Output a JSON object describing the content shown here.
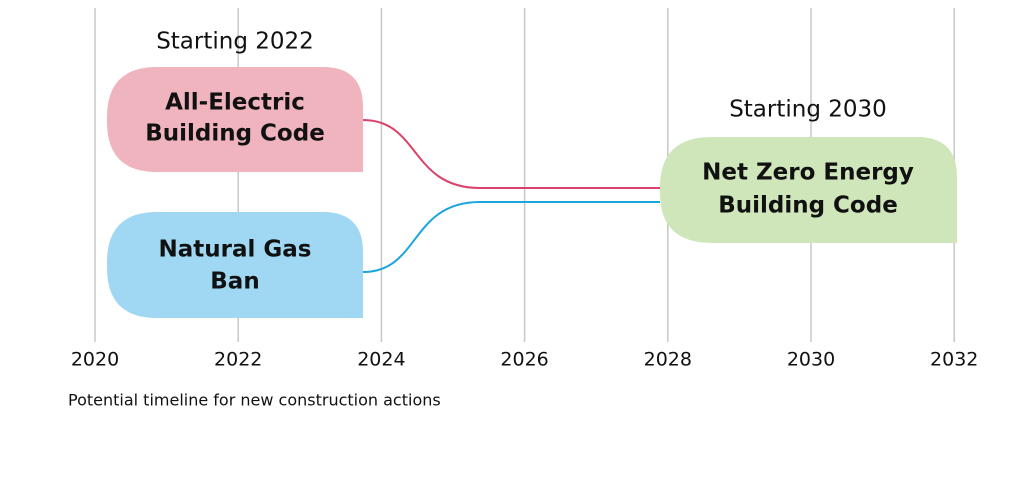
{
  "axis": {
    "labels": [
      "2020",
      "2022",
      "2024",
      "2026",
      "2028",
      "2030",
      "2032"
    ]
  },
  "headings": [
    "Starting 2022",
    "Starting 2030"
  ],
  "boxes": [
    {
      "lines": [
        "All-Electric",
        "Building Code"
      ]
    },
    {
      "lines": [
        "Natural Gas",
        "Ban"
      ]
    },
    {
      "lines": [
        "Net Zero Energy",
        "Building Code"
      ]
    }
  ],
  "caption": "Potential timeline for new construction actions"
}
